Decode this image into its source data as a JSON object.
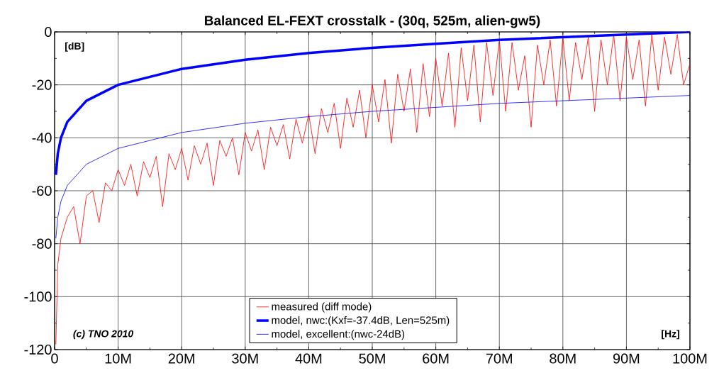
{
  "chart_data": {
    "type": "line",
    "title": "Balanced EL-FEXT crosstalk - (30q, 525m, alien-gw5)",
    "xlabel": "[Hz]",
    "ylabel": "[dB]",
    "annotations": [
      "(c) TNO 2010"
    ],
    "xlim": [
      0,
      100000000
    ],
    "ylim": [
      -120,
      0
    ],
    "xticks": [
      0,
      {
        "value": 10000000,
        "label": "10M"
      },
      {
        "value": 20000000,
        "label": "20M"
      },
      {
        "value": 30000000,
        "label": "30M"
      },
      {
        "value": 40000000,
        "label": "40M"
      },
      {
        "value": 50000000,
        "label": "50M"
      },
      {
        "value": 60000000,
        "label": "60M"
      },
      {
        "value": 70000000,
        "label": "70M"
      },
      {
        "value": 80000000,
        "label": "80M"
      },
      {
        "value": 90000000,
        "label": "90M"
      },
      {
        "value": 100000000,
        "label": "100M"
      }
    ],
    "yticks": [
      -120,
      -100,
      -80,
      -60,
      -40,
      -20,
      0
    ],
    "grid": true,
    "legend": "bottom",
    "line_style": "solid",
    "series": [
      {
        "name": "measured (diff mode)",
        "color": "#ff0000",
        "x": [
          200000,
          500000,
          1000000,
          2000000,
          3000000,
          4000000,
          5000000,
          6000000,
          7000000,
          8000000,
          9000000,
          10000000,
          11000000,
          12000000,
          13000000,
          14000000,
          15000000,
          16000000,
          17000000,
          18000000,
          19000000,
          20000000,
          21000000,
          22000000,
          23000000,
          24000000,
          25000000,
          26000000,
          27000000,
          28000000,
          29000000,
          30000000,
          31000000,
          32000000,
          33000000,
          34000000,
          35000000,
          36000000,
          37000000,
          38000000,
          39000000,
          40000000,
          41000000,
          42000000,
          43000000,
          44000000,
          45000000,
          46000000,
          47000000,
          48000000,
          49000000,
          50000000,
          51000000,
          52000000,
          53000000,
          54000000,
          55000000,
          56000000,
          57000000,
          58000000,
          59000000,
          60000000,
          61000000,
          62000000,
          63000000,
          64000000,
          65000000,
          66000000,
          67000000,
          68000000,
          69000000,
          70000000,
          71000000,
          72000000,
          73000000,
          74000000,
          75000000,
          76000000,
          77000000,
          78000000,
          79000000,
          80000000,
          81000000,
          82000000,
          83000000,
          84000000,
          85000000,
          86000000,
          87000000,
          88000000,
          89000000,
          90000000,
          91000000,
          92000000,
          93000000,
          94000000,
          95000000,
          96000000,
          97000000,
          98000000,
          99000000,
          100000000
        ],
        "values": [
          -118,
          -88,
          -78,
          -70,
          -66,
          -80,
          -62,
          -60,
          -72,
          -57,
          -60,
          -52,
          -58,
          -50,
          -62,
          -49,
          -55,
          -47,
          -66,
          -46,
          -52,
          -44,
          -56,
          -43,
          -50,
          -42,
          -58,
          -41,
          -47,
          -40,
          -54,
          -38,
          -45,
          -37,
          -52,
          -36,
          -43,
          -35,
          -48,
          -33,
          -42,
          -31,
          -46,
          -29,
          -38,
          -27,
          -44,
          -25,
          -36,
          -22,
          -40,
          -20,
          -34,
          -18,
          -42,
          -16,
          -30,
          -14,
          -38,
          -12,
          -32,
          -10,
          -28,
          -8,
          -36,
          -6,
          -26,
          -5,
          -34,
          -4,
          -24,
          -3,
          -30,
          -4,
          -22,
          -9,
          -36,
          -5,
          -20,
          -3,
          -28,
          -2,
          -26,
          -4,
          -18,
          -2,
          -30,
          -3,
          -20,
          -1,
          -26,
          -2,
          -18,
          -3,
          -28,
          -1,
          -22,
          -2,
          -16,
          -1,
          -20,
          -12
        ]
      },
      {
        "name": "model, nwc:(Kxf=-37.4dB, Len=525m)",
        "color": "#0000ff",
        "x": [
          200000,
          500000,
          1000000,
          2000000,
          5000000,
          10000000,
          20000000,
          30000000,
          40000000,
          50000000,
          60000000,
          70000000,
          80000000,
          90000000,
          100000000
        ],
        "values": [
          -54,
          -46,
          -40,
          -34,
          -26,
          -20,
          -14,
          -10.5,
          -8,
          -6,
          -4.5,
          -3,
          -2,
          -1,
          0
        ]
      },
      {
        "name": "model, excellent:(nwc-24dB)",
        "color": "#0000ff",
        "x": [
          200000,
          500000,
          1000000,
          2000000,
          5000000,
          10000000,
          20000000,
          30000000,
          40000000,
          50000000,
          60000000,
          70000000,
          80000000,
          90000000,
          100000000
        ],
        "values": [
          -78,
          -70,
          -64,
          -58,
          -50,
          -44,
          -38,
          -34.5,
          -32,
          -30,
          -28.5,
          -27,
          -26,
          -25,
          -24
        ]
      }
    ]
  }
}
